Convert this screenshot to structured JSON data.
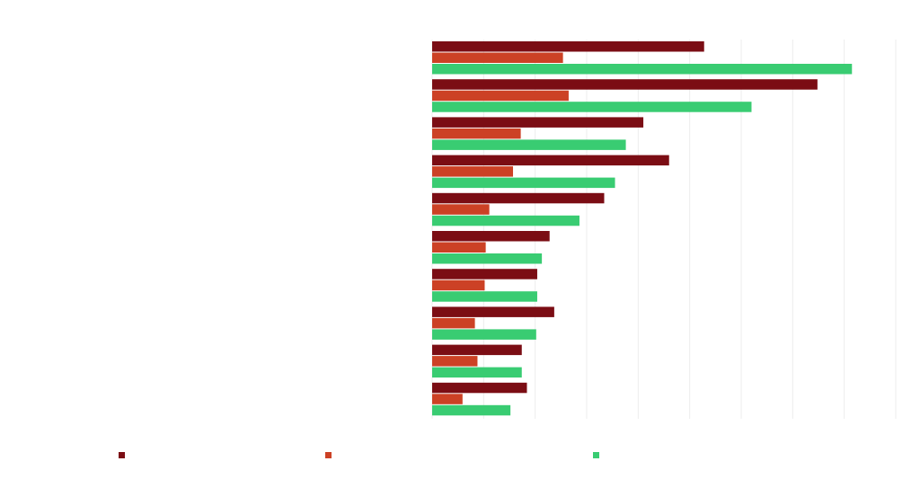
{
  "chart_data": {
    "type": "bar",
    "orientation": "horizontal",
    "title": "",
    "xlabel": "",
    "ylabel": "",
    "categories": [
      "",
      "",
      "",
      "",
      "",
      "",
      "",
      "",
      "",
      ""
    ],
    "series": [
      {
        "name": "",
        "color": "#7b0d14",
        "values": [
          52.8,
          74.8,
          41.0,
          46.0,
          33.4,
          22.8,
          20.4,
          23.7,
          17.4,
          18.4
        ]
      },
      {
        "name": "",
        "color": "#cc4125",
        "values": [
          25.4,
          26.5,
          17.2,
          15.7,
          11.1,
          10.4,
          10.2,
          8.3,
          8.8,
          5.9
        ]
      },
      {
        "name": "",
        "color": "#39cc72",
        "values": [
          81.5,
          62.0,
          37.6,
          35.5,
          28.6,
          21.3,
          20.4,
          20.2,
          17.4,
          15.2
        ]
      }
    ],
    "xlim": [
      0,
      90
    ],
    "gridlines": true,
    "legend_position": "bottom"
  }
}
